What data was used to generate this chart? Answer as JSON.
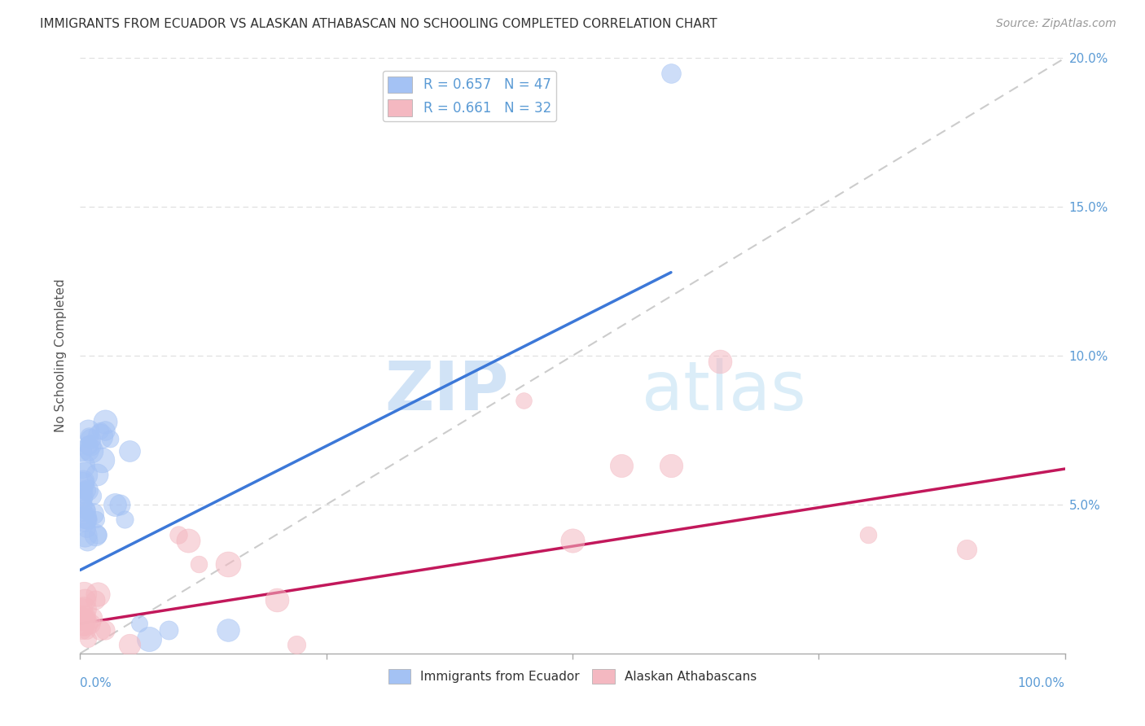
{
  "title": "IMMIGRANTS FROM ECUADOR VS ALASKAN ATHABASCAN NO SCHOOLING COMPLETED CORRELATION CHART",
  "source": "Source: ZipAtlas.com",
  "ylabel": "No Schooling Completed",
  "legend_r1": "R = 0.657",
  "legend_n1": "N = 47",
  "legend_r2": "R = 0.661",
  "legend_n2": "N = 32",
  "blue_color": "#a4c2f4",
  "pink_color": "#f4b8c1",
  "blue_line_color": "#3c78d8",
  "pink_line_color": "#c2185b",
  "background_color": "#ffffff",
  "watermark_zip": "ZIP",
  "watermark_atlas": "atlas",
  "blue_scatter": [
    [
      0.001,
      0.068
    ],
    [
      0.002,
      0.063
    ],
    [
      0.002,
      0.057
    ],
    [
      0.003,
      0.058
    ],
    [
      0.003,
      0.05
    ],
    [
      0.003,
      0.052
    ],
    [
      0.004,
      0.055
    ],
    [
      0.004,
      0.045
    ],
    [
      0.004,
      0.048
    ],
    [
      0.005,
      0.046
    ],
    [
      0.005,
      0.053
    ],
    [
      0.005,
      0.06
    ],
    [
      0.005,
      0.04
    ],
    [
      0.006,
      0.055
    ],
    [
      0.006,
      0.048
    ],
    [
      0.006,
      0.042
    ],
    [
      0.007,
      0.045
    ],
    [
      0.007,
      0.055
    ],
    [
      0.007,
      0.038
    ],
    [
      0.008,
      0.07
    ],
    [
      0.008,
      0.075
    ],
    [
      0.009,
      0.073
    ],
    [
      0.009,
      0.068
    ],
    [
      0.01,
      0.072
    ],
    [
      0.01,
      0.07
    ],
    [
      0.011,
      0.068
    ],
    [
      0.012,
      0.053
    ],
    [
      0.013,
      0.047
    ],
    [
      0.015,
      0.04
    ],
    [
      0.016,
      0.045
    ],
    [
      0.017,
      0.06
    ],
    [
      0.018,
      0.04
    ],
    [
      0.02,
      0.075
    ],
    [
      0.02,
      0.073
    ],
    [
      0.022,
      0.065
    ],
    [
      0.025,
      0.078
    ],
    [
      0.025,
      0.075
    ],
    [
      0.03,
      0.072
    ],
    [
      0.035,
      0.05
    ],
    [
      0.04,
      0.05
    ],
    [
      0.045,
      0.045
    ],
    [
      0.05,
      0.068
    ],
    [
      0.06,
      0.01
    ],
    [
      0.07,
      0.005
    ],
    [
      0.09,
      0.008
    ],
    [
      0.15,
      0.008
    ],
    [
      0.6,
      0.195
    ]
  ],
  "pink_scatter": [
    [
      0.001,
      0.015
    ],
    [
      0.002,
      0.012
    ],
    [
      0.002,
      0.008
    ],
    [
      0.003,
      0.012
    ],
    [
      0.003,
      0.01
    ],
    [
      0.004,
      0.02
    ],
    [
      0.004,
      0.015
    ],
    [
      0.005,
      0.018
    ],
    [
      0.005,
      0.01
    ],
    [
      0.006,
      0.012
    ],
    [
      0.006,
      0.008
    ],
    [
      0.008,
      0.005
    ],
    [
      0.01,
      0.01
    ],
    [
      0.012,
      0.012
    ],
    [
      0.015,
      0.018
    ],
    [
      0.018,
      0.02
    ],
    [
      0.02,
      0.008
    ],
    [
      0.025,
      0.008
    ],
    [
      0.05,
      0.003
    ],
    [
      0.1,
      0.04
    ],
    [
      0.11,
      0.038
    ],
    [
      0.12,
      0.03
    ],
    [
      0.15,
      0.03
    ],
    [
      0.2,
      0.018
    ],
    [
      0.22,
      0.003
    ],
    [
      0.45,
      0.085
    ],
    [
      0.5,
      0.038
    ],
    [
      0.55,
      0.063
    ],
    [
      0.6,
      0.063
    ],
    [
      0.65,
      0.098
    ],
    [
      0.8,
      0.04
    ],
    [
      0.9,
      0.035
    ]
  ],
  "blue_line_x": [
    0.0,
    0.6
  ],
  "blue_line_y": [
    0.028,
    0.128
  ],
  "pink_line_x": [
    0.0,
    1.0
  ],
  "pink_line_y": [
    0.01,
    0.062
  ],
  "diag_line_x": [
    0.0,
    1.0
  ],
  "diag_line_y": [
    0.0,
    0.2
  ],
  "xlim": [
    0.0,
    1.0
  ],
  "ylim": [
    0.0,
    0.2
  ],
  "yticks": [
    0.05,
    0.1,
    0.15,
    0.2
  ],
  "ytick_labels": [
    "5.0%",
    "10.0%",
    "15.0%",
    "20.0%"
  ],
  "xtick_positions": [
    0.0,
    0.25,
    0.5,
    0.75,
    1.0
  ],
  "tick_color": "#aaaaaa",
  "label_color": "#5b9bd5",
  "grid_color": "#dddddd",
  "title_fontsize": 11,
  "source_fontsize": 10,
  "tick_fontsize": 11,
  "ylabel_fontsize": 11
}
